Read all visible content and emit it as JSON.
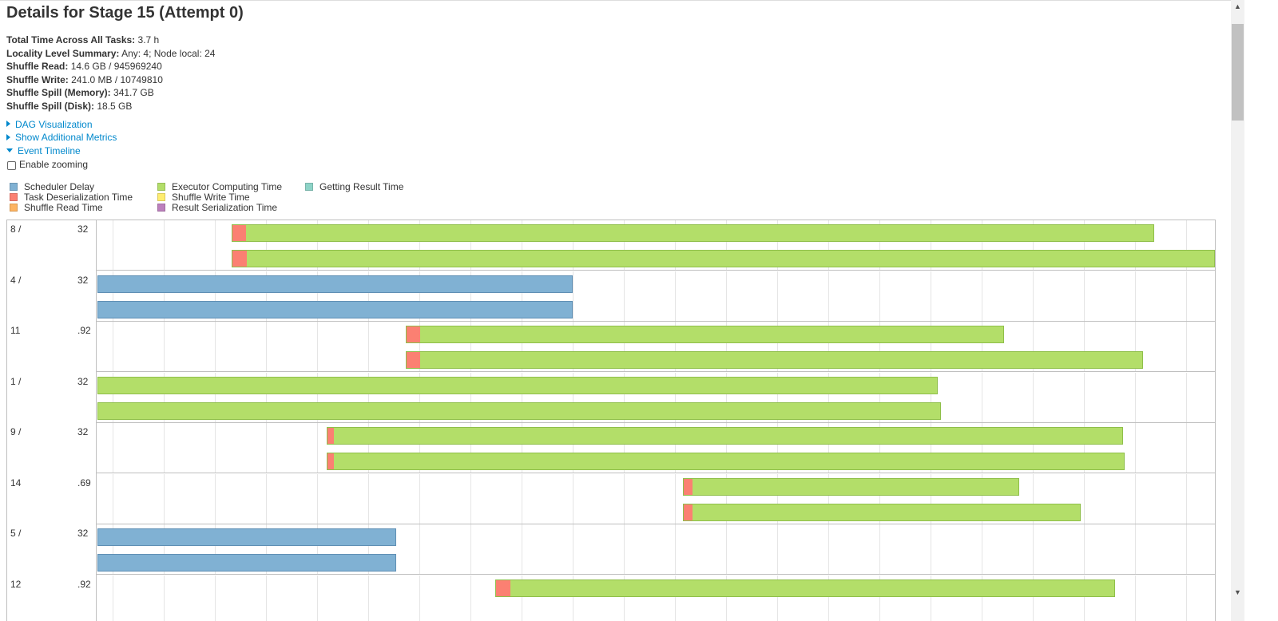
{
  "page": {
    "title": "Details for Stage 15 (Attempt 0)",
    "summary": [
      {
        "label": "Total Time Across All Tasks:",
        "value": "3.7 h"
      },
      {
        "label": "Locality Level Summary:",
        "value": "Any: 4; Node local: 24"
      },
      {
        "label": "Shuffle Read:",
        "value": "14.6 GB / 945969240"
      },
      {
        "label": "Shuffle Write:",
        "value": "241.0 MB / 10749810"
      },
      {
        "label": "Shuffle Spill (Memory):",
        "value": "341.7 GB"
      },
      {
        "label": "Shuffle Spill (Disk):",
        "value": "18.5 GB"
      }
    ],
    "toggles": [
      {
        "label": "DAG Visualization",
        "expanded": false
      },
      {
        "label": "Show Additional Metrics",
        "expanded": false
      },
      {
        "label": "Event Timeline",
        "expanded": true
      }
    ],
    "zoom_label": "Enable zooming"
  },
  "legend": [
    {
      "label": "Scheduler Delay",
      "color": "#80b1d3"
    },
    {
      "label": "Task Deserialization Time",
      "color": "#fb8072"
    },
    {
      "label": "Shuffle Read Time",
      "color": "#fdb462"
    },
    {
      "label": "Executor Computing Time",
      "color": "#b3de69"
    },
    {
      "label": "Shuffle Write Time",
      "color": "#ffed6f"
    },
    {
      "label": "Result Serialization Time",
      "color": "#bc80bd"
    },
    {
      "label": "Getting Result Time",
      "color": "#8dd3c7"
    }
  ],
  "timeline": {
    "axis_fraction_note": "task bar start/end as fractions of visible time window",
    "groups": [
      {
        "label_a": "8 /",
        "label_b": "32",
        "tasks": [
          {
            "start": 0.12,
            "deser_end": 0.132,
            "end": 0.946
          },
          {
            "start": 0.12,
            "deser_end": 0.133,
            "end": 1.0
          }
        ]
      },
      {
        "label_a": "4 /",
        "label_b": "32",
        "tasks": [
          {
            "start": 0.0,
            "sched_end": 0.425,
            "end": 0.425
          },
          {
            "start": 0.0,
            "sched_end": 0.425,
            "end": 0.425
          }
        ]
      },
      {
        "label_a": "11",
        "label_b": ".92",
        "tasks": [
          {
            "start": 0.276,
            "deser_end": 0.288,
            "end": 0.811
          },
          {
            "start": 0.276,
            "deser_end": 0.288,
            "end": 0.936
          }
        ]
      },
      {
        "label_a": "1 /",
        "label_b": "32",
        "tasks": [
          {
            "start": 0.0,
            "deser_end": 0.0,
            "end": 0.752
          },
          {
            "start": 0.0,
            "deser_end": 0.0,
            "end": 0.755
          }
        ]
      },
      {
        "label_a": "9 /",
        "label_b": "32",
        "tasks": [
          {
            "start": 0.205,
            "deser_end": 0.211,
            "end": 0.918
          },
          {
            "start": 0.205,
            "deser_end": 0.211,
            "end": 0.919
          }
        ]
      },
      {
        "label_a": "14",
        "label_b": ".69",
        "tasks": [
          {
            "start": 0.524,
            "deser_end": 0.532,
            "end": 0.825
          },
          {
            "start": 0.524,
            "deser_end": 0.532,
            "end": 0.88
          }
        ]
      },
      {
        "label_a": "5 /",
        "label_b": "32",
        "tasks": [
          {
            "start": 0.0,
            "sched_end": 0.267,
            "end": 0.267
          },
          {
            "start": 0.0,
            "sched_end": 0.267,
            "end": 0.267
          }
        ]
      },
      {
        "label_a": "12",
        "label_b": ".92",
        "tasks": [
          {
            "start": 0.356,
            "deser_end": 0.369,
            "end": 0.911
          }
        ]
      }
    ]
  },
  "scrollbar": {
    "up": "▲",
    "down": "▼"
  }
}
